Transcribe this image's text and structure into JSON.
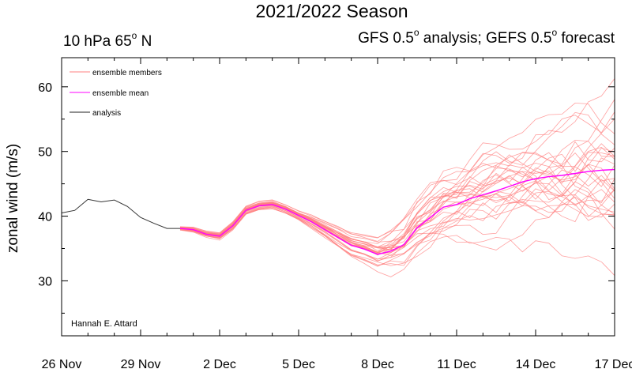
{
  "chart_data": {
    "type": "line",
    "title": "2021/2022 Season",
    "subtitle_left": "10 hPa 65",
    "subtitle_left_deg": "o",
    "subtitle_left_tail": " N",
    "subtitle_right_a": "GFS 0.5",
    "subtitle_right_deg1": "o",
    "subtitle_right_b": " analysis; GEFS 0.5",
    "subtitle_right_deg2": "o",
    "subtitle_right_c": " forecast",
    "ylabel": "zonal wind (m/s)",
    "xlabel": "",
    "xlim": [
      0,
      21
    ],
    "ylim": [
      21.5,
      64.5
    ],
    "x_ticks": [
      {
        "x": 0,
        "label": "26 Nov"
      },
      {
        "x": 3,
        "label": "29 Nov"
      },
      {
        "x": 6,
        "label": "2 Dec"
      },
      {
        "x": 9,
        "label": "5 Dec"
      },
      {
        "x": 12,
        "label": "8 Dec"
      },
      {
        "x": 15,
        "label": "11 Dec"
      },
      {
        "x": 18,
        "label": "14 Dec"
      },
      {
        "x": 21,
        "label": "17 Dec"
      }
    ],
    "y_ticks": [
      30,
      40,
      50,
      60
    ],
    "legend": [
      {
        "name": "ensemble members",
        "color": "#ff8080"
      },
      {
        "name": "ensemble mean",
        "color": "#ff00ff"
      },
      {
        "name": "analysis",
        "color": "#222222"
      }
    ],
    "credit": "Hannah E. Attard",
    "series": {
      "analysis": {
        "color": "#333333",
        "x": [
          0,
          0.5,
          1,
          1.5,
          2,
          2.5,
          3,
          3.5,
          4,
          4.5
        ],
        "y": [
          40.5,
          40.9,
          42.6,
          42.2,
          42.5,
          41.5,
          39.8,
          38.9,
          38.1,
          38.1
        ]
      },
      "ensemble_mean": {
        "color": "#ff00ff",
        "x": [
          4.5,
          5,
          5.5,
          6,
          6.5,
          7,
          7.5,
          8,
          8.5,
          9,
          9.5,
          10,
          10.5,
          11,
          11.5,
          12,
          12.5,
          13,
          13.5,
          14,
          14.5,
          15,
          15.5,
          16,
          16.5,
          17,
          17.5,
          18,
          18.5,
          19,
          19.5,
          20,
          20.5,
          21
        ],
        "y": [
          38.1,
          37.9,
          37.2,
          36.9,
          38.5,
          40.9,
          41.6,
          41.8,
          41.1,
          40.1,
          39.1,
          37.9,
          36.7,
          35.5,
          34.9,
          34.1,
          34.6,
          35.6,
          38.2,
          39.8,
          41.4,
          41.8,
          42.7,
          43.3,
          43.9,
          44.6,
          45.3,
          45.8,
          46.1,
          46.3,
          46.6,
          46.9,
          47.1,
          47.2
        ]
      },
      "ensemble_members": {
        "color": "#ff8080",
        "count": 30
      }
    }
  }
}
